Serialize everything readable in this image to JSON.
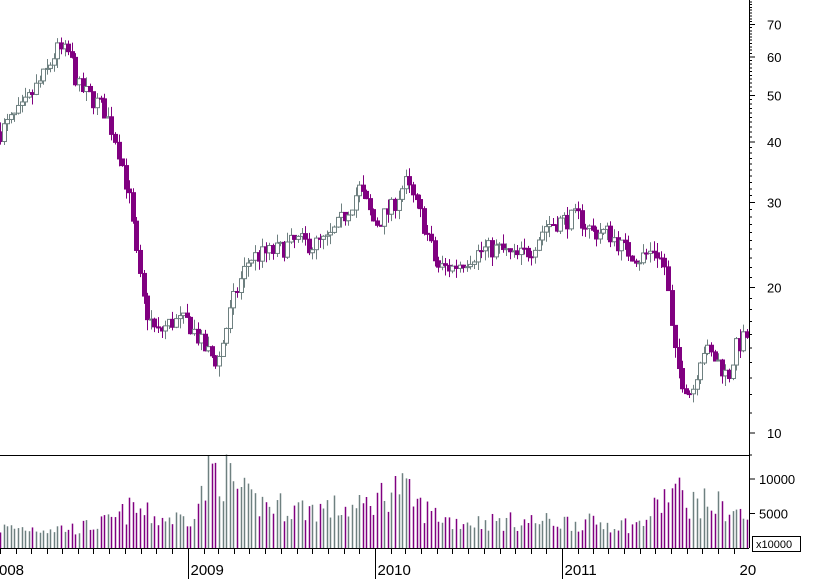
{
  "chart_data": [
    {
      "type": "candlestick",
      "panel": "price",
      "y_scale": "log",
      "ylim": [
        9,
        78
      ],
      "y_ticks": [
        10,
        20,
        30,
        40,
        50,
        60,
        70
      ],
      "y_tick_labels": [
        "10",
        "20",
        "30",
        "40",
        "50",
        "60",
        "70"
      ],
      "x_labels": [
        "008",
        "2009",
        "2010",
        "2011",
        "20"
      ],
      "x_range": [
        "2008-01-01",
        "2011-12-31"
      ],
      "colors": {
        "up": "#6e8080",
        "down": "#800080"
      },
      "anchors": [
        [
          "2008-01-01",
          42
        ],
        [
          "2008-02-15",
          47
        ],
        [
          "2008-04-01",
          56
        ],
        [
          "2008-04-20",
          62
        ],
        [
          "2008-05-15",
          61
        ],
        [
          "2008-06-01",
          52
        ],
        [
          "2008-07-01",
          49
        ],
        [
          "2008-07-20",
          47
        ],
        [
          "2008-08-15",
          40
        ],
        [
          "2008-09-10",
          30
        ],
        [
          "2008-09-25",
          22
        ],
        [
          "2008-10-10",
          18
        ],
        [
          "2008-11-01",
          16
        ],
        [
          "2008-12-01",
          17
        ],
        [
          "2009-01-01",
          17
        ],
        [
          "2009-02-01",
          15
        ],
        [
          "2009-03-01",
          14
        ],
        [
          "2009-04-01",
          19
        ],
        [
          "2009-05-01",
          23
        ],
        [
          "2009-06-01",
          23.5
        ],
        [
          "2009-07-01",
          24
        ],
        [
          "2009-08-01",
          25
        ],
        [
          "2009-09-01",
          24.5
        ],
        [
          "2009-10-01",
          25
        ],
        [
          "2009-11-01",
          28
        ],
        [
          "2009-12-01",
          32
        ],
        [
          "2010-01-01",
          27
        ],
        [
          "2010-02-01",
          29
        ],
        [
          "2010-03-01",
          33
        ],
        [
          "2010-04-01",
          28
        ],
        [
          "2010-05-01",
          22
        ],
        [
          "2010-06-01",
          22
        ],
        [
          "2010-07-01",
          23
        ],
        [
          "2010-08-01",
          24
        ],
        [
          "2010-09-01",
          24
        ],
        [
          "2010-10-01",
          23
        ],
        [
          "2010-11-01",
          24
        ],
        [
          "2010-12-01",
          27
        ],
        [
          "2011-01-01",
          27.5
        ],
        [
          "2011-02-01",
          28
        ],
        [
          "2011-03-01",
          26
        ],
        [
          "2011-04-01",
          26
        ],
        [
          "2011-05-01",
          24
        ],
        [
          "2011-06-01",
          23
        ],
        [
          "2011-07-01",
          24
        ],
        [
          "2011-07-20",
          22
        ],
        [
          "2011-08-05",
          15
        ],
        [
          "2011-08-20",
          13
        ],
        [
          "2011-09-10",
          12
        ],
        [
          "2011-10-01",
          15
        ],
        [
          "2011-11-01",
          14
        ],
        [
          "2011-11-20",
          13
        ],
        [
          "2011-12-05",
          15
        ],
        [
          "2011-12-31",
          16
        ]
      ]
    },
    {
      "type": "bar",
      "panel": "volume",
      "ylim": [
        0,
        13000
      ],
      "y_ticks": [
        5000,
        10000
      ],
      "y_tick_labels": [
        "5000",
        "10000"
      ],
      "unit_label": "x10000",
      "colors": {
        "up": "#6e8080",
        "down": "#800080"
      },
      "anchors": [
        [
          "2008-01-01",
          3000
        ],
        [
          "2008-06-01",
          3000
        ],
        [
          "2008-08-01",
          4000
        ],
        [
          "2008-09-15",
          6000
        ],
        [
          "2008-11-01",
          4500
        ],
        [
          "2009-01-01",
          4500
        ],
        [
          "2009-02-01",
          8500
        ],
        [
          "2009-02-15",
          12000
        ],
        [
          "2009-03-15",
          11000
        ],
        [
          "2009-05-01",
          7000
        ],
        [
          "2009-08-01",
          6000
        ],
        [
          "2009-12-01",
          6000
        ],
        [
          "2010-02-15",
          9500
        ],
        [
          "2010-04-01",
          6000
        ],
        [
          "2010-06-01",
          4000
        ],
        [
          "2010-10-01",
          4000
        ],
        [
          "2011-01-01",
          4000
        ],
        [
          "2011-06-01",
          3500
        ],
        [
          "2011-08-05",
          9000
        ],
        [
          "2011-09-01",
          7000
        ],
        [
          "2011-11-01",
          6500
        ],
        [
          "2011-12-31",
          4500
        ]
      ]
    }
  ]
}
